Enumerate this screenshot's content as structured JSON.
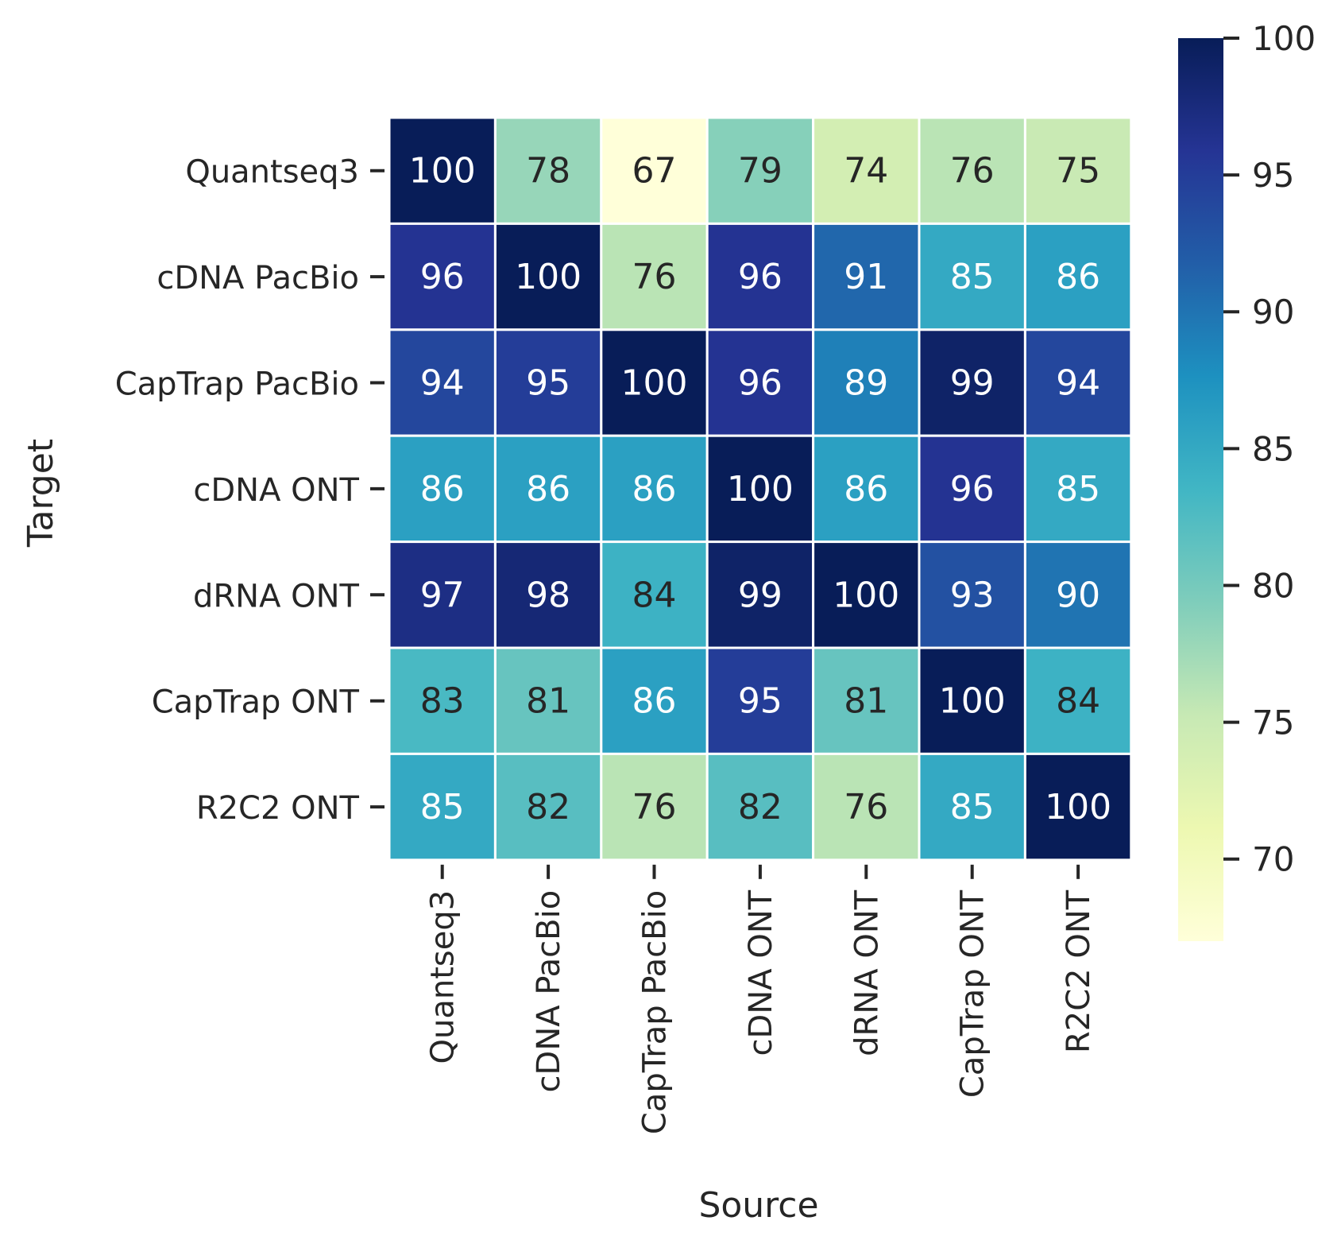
{
  "chart_data": {
    "type": "heatmap",
    "xlabel": "Source",
    "ylabel": "Target",
    "x_categories": [
      "Quantseq3",
      "cDNA PacBio",
      "CapTrap PacBio",
      "cDNA ONT",
      "dRNA ONT",
      "CapTrap ONT",
      "R2C2 ONT"
    ],
    "y_categories": [
      "Quantseq3",
      "cDNA PacBio",
      "CapTrap PacBio",
      "cDNA ONT",
      "dRNA ONT",
      "CapTrap ONT",
      "R2C2 ONT"
    ],
    "values": [
      [
        100,
        78,
        67,
        79,
        74,
        76,
        75
      ],
      [
        96,
        100,
        76,
        96,
        91,
        85,
        86
      ],
      [
        94,
        95,
        100,
        96,
        89,
        99,
        94
      ],
      [
        86,
        86,
        86,
        100,
        86,
        96,
        85
      ],
      [
        97,
        98,
        84,
        99,
        100,
        93,
        90
      ],
      [
        83,
        81,
        86,
        95,
        81,
        100,
        84
      ],
      [
        85,
        82,
        76,
        82,
        76,
        85,
        100
      ]
    ],
    "colorbar": {
      "range": [
        67,
        100
      ],
      "ticks": [
        "70",
        "75",
        "80",
        "85",
        "90",
        "95",
        "100"
      ],
      "colormap": "YlGnBu",
      "stops": [
        "#ffffd9",
        "#edf8b1",
        "#c7e9b4",
        "#7fcdbb",
        "#41b6c4",
        "#1d91c0",
        "#225ea8",
        "#253494",
        "#081d58"
      ]
    },
    "annotation_colors": {
      "dark": "#262626",
      "light": "#ffffff"
    },
    "grid_line_color": "#ffffff"
  }
}
